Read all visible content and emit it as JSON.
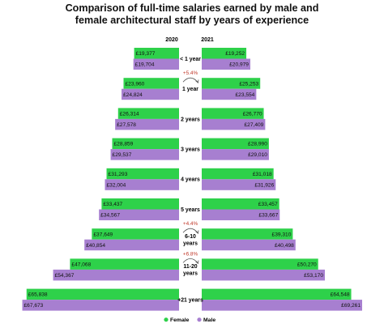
{
  "chart_data": {
    "type": "bar",
    "title_lines": [
      "Comparison of full-time salaries earned by male and",
      "female architectural staff by years of experience"
    ],
    "year_labels": [
      "2020",
      "2021"
    ],
    "categories": [
      "< 1 year",
      "1 year",
      "2 years",
      "3 years",
      "4 years",
      "5 years",
      "6-10 years",
      "11-20 years",
      "+21 years"
    ],
    "category_lines": [
      [
        "< 1 year"
      ],
      [
        "1 year"
      ],
      [
        "2 years"
      ],
      [
        "3 years"
      ],
      [
        "4 years"
      ],
      [
        "5 years"
      ],
      [
        "6-10",
        "years"
      ],
      [
        "11-20",
        "years"
      ],
      [
        "+21 years"
      ]
    ],
    "series": [
      {
        "name": "Female",
        "color": "#2ed14a",
        "values_2020": [
          19377,
          23960,
          26314,
          28859,
          31293,
          33437,
          37649,
          47068,
          65838
        ],
        "labels_2020": [
          "£19,377",
          "£23,960",
          "£26,314",
          "£28,859",
          "£31,293",
          "£33,437",
          "£37,649",
          "£47,068",
          "£65,838"
        ],
        "values_2021": [
          19252,
          25253,
          26770,
          28990,
          31018,
          33457,
          39310,
          50270,
          64548
        ],
        "labels_2021": [
          "£19,252",
          "£25,253",
          "£26,770",
          "£28,990",
          "£31,018",
          "£33,457",
          "£39,310",
          "£50,270",
          "£64,548"
        ]
      },
      {
        "name": "Male",
        "color": "#a77fd0",
        "values_2020": [
          19704,
          24824,
          27578,
          29537,
          32004,
          34567,
          40854,
          54367,
          67673
        ],
        "labels_2020": [
          "£19,704",
          "£24,824",
          "£27,578",
          "£29,537",
          "£32,004",
          "£34,567",
          "£40,854",
          "£54,367",
          "£67,673"
        ],
        "values_2021": [
          20979,
          23554,
          27409,
          29010,
          31926,
          33667,
          40498,
          53170,
          69261
        ],
        "labels_2021": [
          "£20,979",
          "£23,554",
          "£27,409",
          "£29,010",
          "£31,926",
          "£33,667",
          "£40,498",
          "£53,170",
          "£69,261"
        ]
      }
    ],
    "annotations": [
      {
        "category": "1 year",
        "text": "+5.4%"
      },
      {
        "category": "6-10 years",
        "text": "+4.4%"
      },
      {
        "category": "11-20 years",
        "text": "+6.8%"
      }
    ],
    "annotation_color": "#c0392b",
    "legend": [
      "Female",
      "Male"
    ],
    "legend_position": "bottom-center",
    "grid": false
  }
}
